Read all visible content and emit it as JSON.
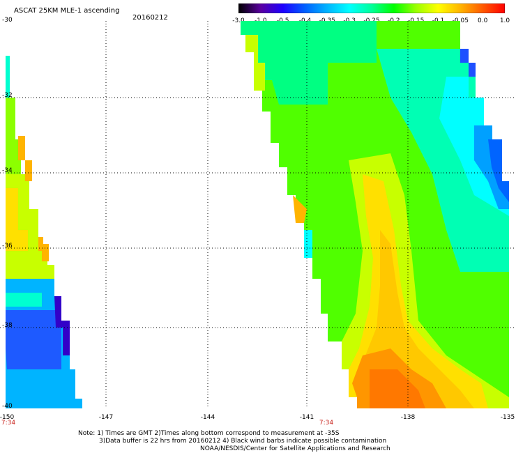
{
  "title": "ASCAT 25KM MLE-1 ascending",
  "date": "20160212",
  "colorbar": {
    "labels": [
      "-3.0",
      "-1.0",
      "-0.5",
      "-0.4",
      "-0.35",
      "-0.3",
      "-0.25",
      "-0.2",
      "-0.15",
      "-0.1",
      "-0.05",
      "0.0",
      "1.0"
    ],
    "colors": [
      "#000000",
      "#5a00a0",
      "#1e00ff",
      "#0060ff",
      "#00b4ff",
      "#00ffff",
      "#00ff9a",
      "#00ff00",
      "#9aff00",
      "#ffff00",
      "#ffb400",
      "#ff5a00",
      "#ff0000"
    ]
  },
  "axes": {
    "lat_labels": [
      "-30",
      "-32",
      "-34",
      "-36",
      "-38",
      "-40"
    ],
    "lon_labels": [
      "-150",
      "-147",
      "-144",
      "-141",
      "-138",
      "-135"
    ],
    "lat_range": [
      -40,
      -30
    ],
    "lon_range": [
      -150,
      -135
    ]
  },
  "swath_times": [
    "7:34",
    "7:34"
  ],
  "notes": [
    "Note: 1) Times are GMT 2)Times along bottom correspond to measurement at -35S",
    "3)Data buffer is 22 hrs from 20160212 4) Black wind barbs indicate possible contamination",
    "NOAA/NESDIS/Center for Satellite Applications and Research"
  ]
}
